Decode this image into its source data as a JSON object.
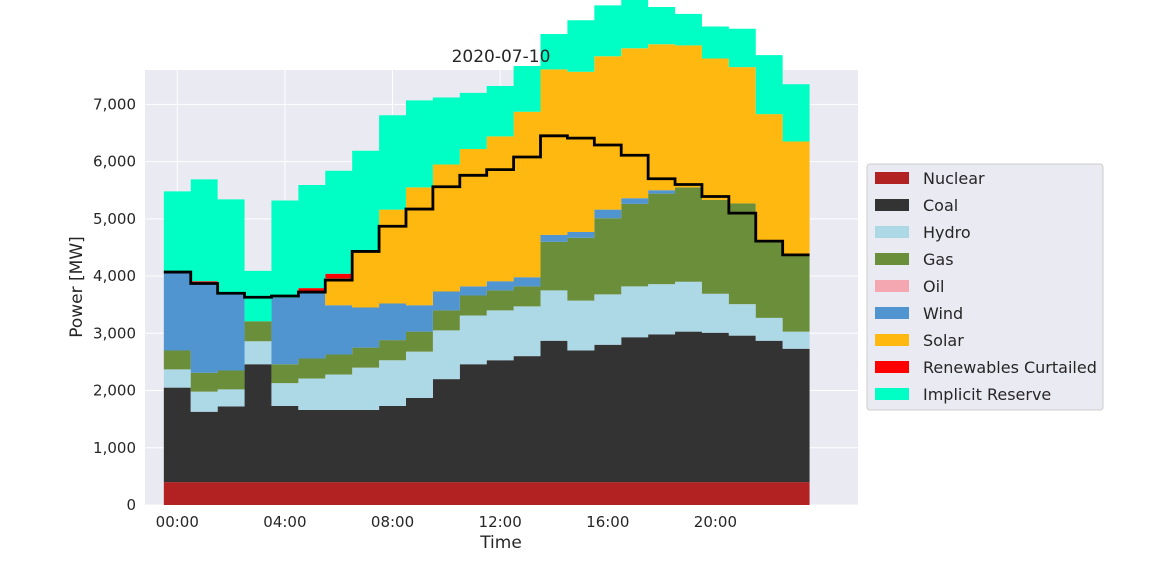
{
  "chart_data": {
    "type": "area",
    "step": true,
    "title": "2020-07-10",
    "xlabel": "Time",
    "ylabel": "Power [MW]",
    "ylim": [
      0,
      7600
    ],
    "yticks": [
      0,
      1000,
      2000,
      3000,
      4000,
      5000,
      6000,
      7000
    ],
    "ytick_labels": [
      "0",
      "1,000",
      "2,000",
      "3,000",
      "4,000",
      "5,000",
      "6,000",
      "7,000"
    ],
    "xlim": [
      -1.2,
      25.3
    ],
    "xticks": [
      0,
      4,
      8,
      12,
      16,
      20
    ],
    "xtick_labels": [
      "00:00",
      "04:00",
      "08:00",
      "12:00",
      "16:00",
      "20:00"
    ],
    "hours": [
      0,
      1,
      2,
      3,
      4,
      5,
      6,
      7,
      8,
      9,
      10,
      11,
      12,
      13,
      14,
      15,
      16,
      17,
      18,
      19,
      20,
      21,
      22,
      23
    ],
    "grid": true,
    "legend_position": "right",
    "background": "#eaeaf2",
    "series": [
      {
        "name": "Nuclear",
        "color": "#b22222",
        "values": [
          400,
          400,
          400,
          400,
          400,
          400,
          400,
          400,
          400,
          400,
          400,
          400,
          400,
          400,
          400,
          400,
          400,
          400,
          400,
          400,
          400,
          400,
          400,
          400
        ]
      },
      {
        "name": "Coal",
        "color": "#333333",
        "values": [
          1650,
          1230,
          1320,
          2060,
          1330,
          1260,
          1260,
          1260,
          1330,
          1470,
          1800,
          2060,
          2130,
          2200,
          2470,
          2300,
          2400,
          2530,
          2580,
          2630,
          2610,
          2560,
          2470,
          2330
        ]
      },
      {
        "name": "Hydro",
        "color": "#add8e6",
        "values": [
          320,
          350,
          300,
          400,
          400,
          550,
          620,
          740,
          800,
          810,
          850,
          850,
          870,
          870,
          880,
          870,
          880,
          890,
          880,
          870,
          680,
          550,
          400,
          300
        ]
      },
      {
        "name": "Gas",
        "color": "#6b8e3b",
        "values": [
          330,
          330,
          330,
          350,
          330,
          350,
          350,
          350,
          350,
          350,
          350,
          350,
          350,
          350,
          850,
          1100,
          1330,
          1440,
          1580,
          1650,
          1640,
          1760,
          1340,
          1320
        ]
      },
      {
        "name": "Oil",
        "color": "#f4a7b0",
        "values": [
          0,
          0,
          0,
          0,
          0,
          0,
          0,
          0,
          0,
          0,
          0,
          0,
          0,
          0,
          0,
          0,
          0,
          0,
          0,
          0,
          0,
          0,
          0,
          0
        ]
      },
      {
        "name": "Wind",
        "color": "#5095d0",
        "values": [
          1380,
          1550,
          1340,
          0,
          1160,
          1140,
          860,
          700,
          640,
          460,
          330,
          160,
          160,
          160,
          120,
          100,
          150,
          100,
          60,
          0,
          0,
          0,
          0,
          0
        ]
      },
      {
        "name": "Solar",
        "color": "#ffb80f",
        "values": [
          0,
          0,
          0,
          0,
          0,
          0,
          0,
          0,
          0,
          0,
          0,
          0,
          0,
          0,
          0,
          0,
          0,
          0,
          0,
          0,
          0,
          0,
          0,
          0
        ]
      },
      {
        "name": "Renewables Curtailed",
        "color": "#ff0000",
        "values": [
          0,
          50,
          0,
          0,
          0,
          90,
          80,
          0,
          0,
          0,
          0,
          0,
          0,
          0,
          0,
          0,
          0,
          0,
          0,
          0,
          0,
          0,
          0,
          0
        ]
      },
      {
        "name": "Implicit Reserve",
        "color": "#00ffc4",
        "values": [
          1400,
          1780,
          1650,
          880,
          1700,
          1800,
          1800,
          1750,
          1650,
          1520,
          1170,
          980,
          880,
          800,
          620,
          900,
          890,
          880,
          650,
          550,
          560,
          670,
          1030,
          1000
        ]
      }
    ],
    "solar_band": [
      0,
      0,
      0,
      0,
      0,
      0,
      470,
      990,
      1640,
      2060,
      2220,
      2400,
      2530,
      2890,
      2890,
      2800,
      2680,
      2620,
      2550,
      2480,
      2470,
      2380,
      2220,
      2000
    ],
    "load_line": {
      "name": "Load",
      "color": "#000000",
      "values": [
        4070,
        3870,
        3700,
        3630,
        3650,
        3720,
        3930,
        4430,
        4870,
        5170,
        5560,
        5760,
        5860,
        6080,
        6450,
        6410,
        6290,
        6110,
        5700,
        5600,
        5390,
        5100,
        4610,
        4370
      ]
    }
  }
}
